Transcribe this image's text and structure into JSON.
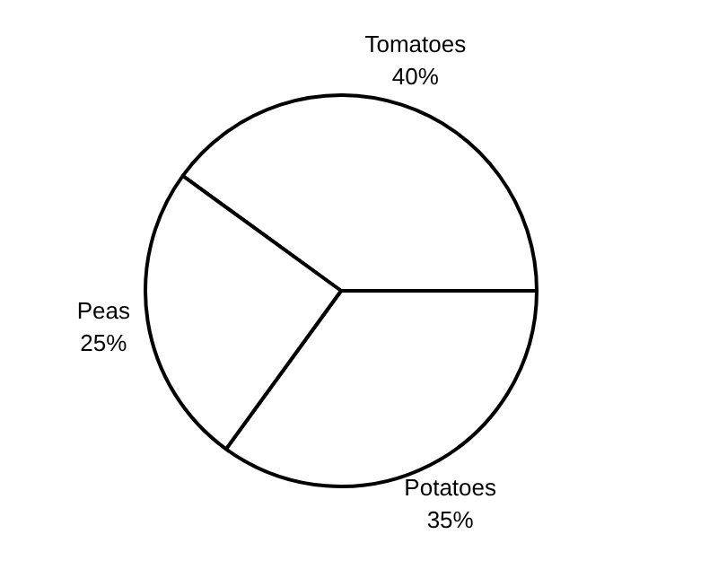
{
  "chart_data": {
    "type": "pie",
    "categories": [
      "Tomatoes",
      "Potatoes",
      "Peas"
    ],
    "values": [
      40,
      35,
      25
    ],
    "value_labels": [
      "40%",
      "35%",
      "25%"
    ],
    "colors": [
      "#ffffff",
      "#ffffff",
      "#ffffff"
    ],
    "legend": false
  }
}
